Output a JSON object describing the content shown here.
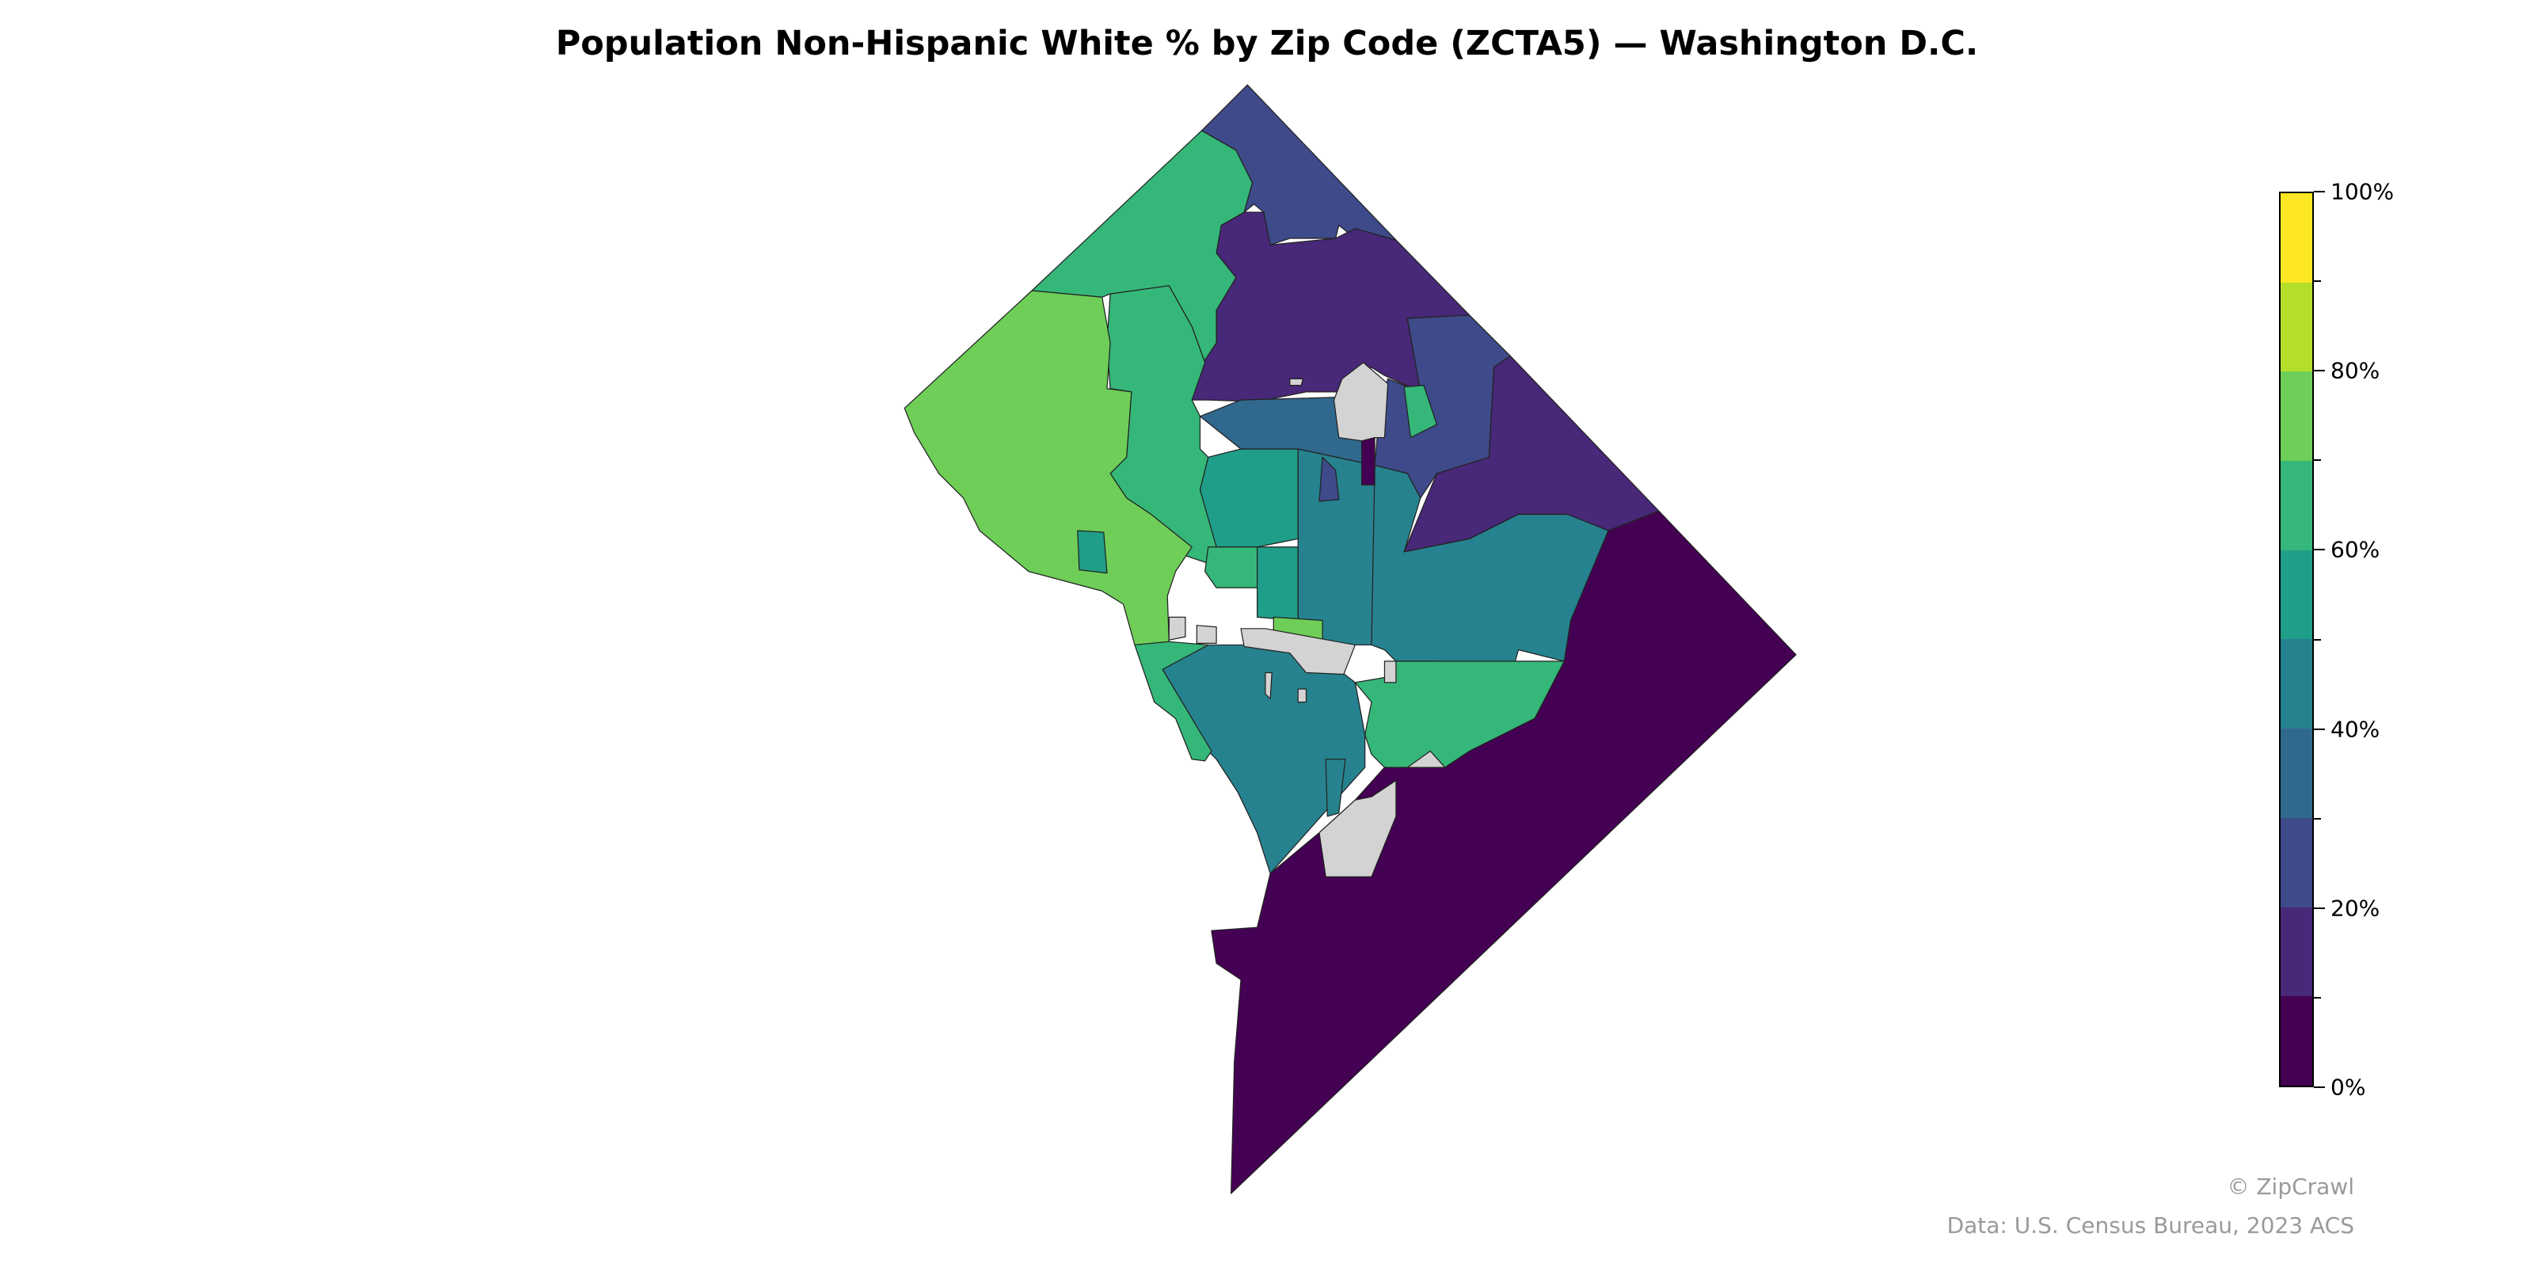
{
  "title": "Population Non-Hispanic White % by Zip Code (ZCTA5) — Washington D.C.",
  "colorbar": {
    "min": 0,
    "max": 100,
    "unit": "%",
    "bins": [
      {
        "range": [
          0,
          10
        ],
        "color": "#440154"
      },
      {
        "range": [
          10,
          20
        ],
        "color": "#482878"
      },
      {
        "range": [
          20,
          30
        ],
        "color": "#3e4a89"
      },
      {
        "range": [
          30,
          40
        ],
        "color": "#31688e"
      },
      {
        "range": [
          40,
          50
        ],
        "color": "#26828e"
      },
      {
        "range": [
          50,
          60
        ],
        "color": "#1f9e89"
      },
      {
        "range": [
          60,
          70
        ],
        "color": "#35b779"
      },
      {
        "range": [
          70,
          80
        ],
        "color": "#6ece58"
      },
      {
        "range": [
          80,
          90
        ],
        "color": "#b5de2b"
      },
      {
        "range": [
          90,
          100
        ],
        "color": "#fde725"
      }
    ],
    "tick_labels": [
      "0%",
      "20%",
      "40%",
      "60%",
      "80%",
      "100%"
    ],
    "tick_values": [
      0,
      20,
      40,
      60,
      80,
      100
    ],
    "minor_ticks": [
      10,
      30,
      50,
      70,
      90
    ]
  },
  "no_data_color": "#d3d3d3",
  "footer": {
    "credit": "© ZipCrawl",
    "source": "Data: U.S. Census Bureau, 2023 ACS"
  }
}
